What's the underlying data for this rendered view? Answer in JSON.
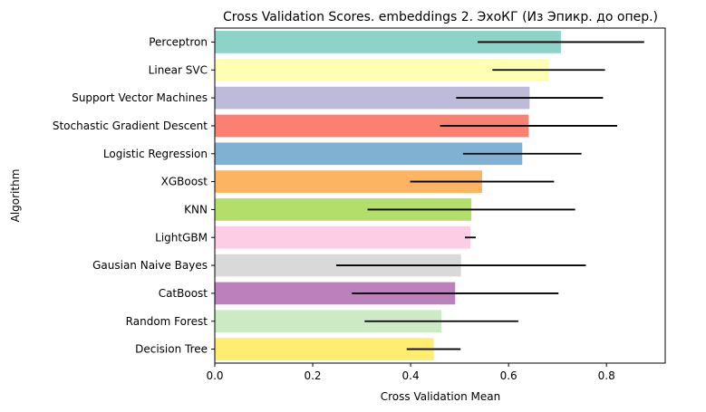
{
  "chart_data": {
    "type": "bar",
    "orientation": "horizontal",
    "title": "Cross Validation Scores. embeddings 2. ЭхоКГ (Из Эпикр. до опер.)",
    "xlabel": "Cross Validation Mean",
    "ylabel": "Algorithm",
    "xlim": [
      0,
      0.92
    ],
    "xticks": [
      0.0,
      0.2,
      0.4,
      0.6,
      0.8
    ],
    "xtick_labels": [
      "0.0",
      "0.2",
      "0.4",
      "0.6",
      "0.8"
    ],
    "grid": false,
    "categories": [
      "Perceptron",
      "Linear SVC",
      "Support Vector Machines",
      "Stochastic Gradient Descent",
      "Logistic Regression",
      "XGBoost",
      "KNN",
      "LightGBM",
      "Gausian Naive Bayes",
      "CatBoost",
      "Random Forest",
      "Decision Tree"
    ],
    "values": [
      0.707,
      0.682,
      0.643,
      0.641,
      0.628,
      0.546,
      0.524,
      0.522,
      0.503,
      0.491,
      0.463,
      0.447
    ],
    "errors": [
      0.17,
      0.115,
      0.15,
      0.181,
      0.121,
      0.147,
      0.212,
      0.011,
      0.255,
      0.211,
      0.157,
      0.055
    ],
    "colors": [
      "#8dd3c7",
      "#ffffb3",
      "#bebada",
      "#fb8072",
      "#80b1d3",
      "#fdb462",
      "#b3de69",
      "#fccde5",
      "#d9d9d9",
      "#bc80bd",
      "#ccebc5",
      "#ffed6f"
    ]
  }
}
